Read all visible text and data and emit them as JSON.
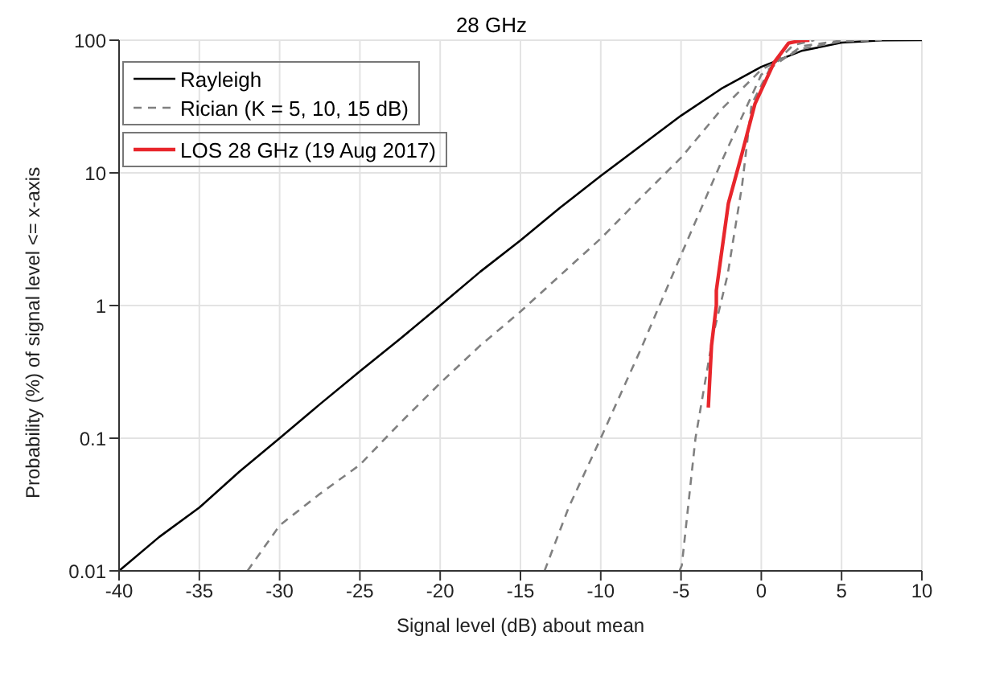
{
  "chart_data": {
    "type": "line",
    "title": "28 GHz",
    "xlabel": "Signal level (dB) about mean",
    "ylabel": "Probability (%) of signal level <= x-axis",
    "log": "y",
    "grid": true,
    "legend": "top left",
    "marker": "none",
    "xlim": [
      -40,
      10
    ],
    "xticks": [
      -40,
      -35,
      -30,
      -25,
      -20,
      -15,
      -10,
      -5,
      0,
      5,
      10
    ],
    "ylim": [
      0.01,
      100
    ],
    "yticks": [
      0.01,
      0.1,
      1,
      10,
      100
    ],
    "series": [
      {
        "name": "Rayleigh",
        "color": "#000000",
        "line_style": "solid",
        "x": [
          -40,
          -37.5,
          -35,
          -32.5,
          -30,
          -27.5,
          -25,
          -22.5,
          -20,
          -17.5,
          -15,
          -12.5,
          -10,
          -7.5,
          -5,
          -2.5,
          0,
          2.5,
          5,
          7.5,
          10
        ],
        "values": [
          0.01,
          0.018,
          0.03,
          0.056,
          0.1,
          0.18,
          0.32,
          0.56,
          1,
          1.8,
          3.1,
          5.5,
          9.5,
          16,
          27,
          43,
          63,
          83,
          96,
          99.6,
          100
        ]
      },
      {
        "name": "Rician (K = 5, 10, 15 dB)",
        "color": "#808080",
        "line_style": "dashed",
        "x": [
          -32,
          -30,
          -27.5,
          -25,
          -22.5,
          -20,
          -17.5,
          -15,
          -12.5,
          -10,
          -7.5,
          -5,
          -2.5,
          0,
          2.5,
          5,
          7.5
        ],
        "values": [
          0.01,
          0.022,
          0.038,
          0.063,
          0.13,
          0.26,
          0.5,
          0.9,
          1.7,
          3.2,
          6.5,
          13,
          30,
          60,
          86,
          98,
          100
        ]
      },
      {
        "color": "#808080",
        "line_style": "dashed",
        "x": [
          -13.5,
          -12,
          -10,
          -7.5,
          -5,
          -2.5,
          0,
          2.5,
          5
        ],
        "values": [
          0.01,
          0.03,
          0.1,
          0.47,
          2.4,
          12,
          55,
          90,
          99.5
        ]
      },
      {
        "color": "#808080",
        "line_style": "dashed",
        "x": [
          -5.1,
          -4.95,
          -4.1,
          -3,
          -2.1,
          -1.2,
          -0.6,
          0.6,
          2,
          3.3
        ],
        "values": [
          0.01,
          0.011,
          0.1,
          0.6,
          1.7,
          8,
          33,
          63,
          92,
          100
        ]
      },
      {
        "name": "LOS 28 GHz (19 Aug 2017)",
        "color": "#e8262c",
        "line_style": "solid",
        "x": [
          -3.3,
          -3.1,
          -2.8,
          -2.8,
          -2.05,
          -1.2,
          -0.4,
          0.8,
          1.7,
          2.5,
          3
        ],
        "values": [
          0.17,
          0.5,
          1,
          1.3,
          5.9,
          14,
          33,
          68,
          95,
          99.5,
          100
        ]
      }
    ]
  }
}
